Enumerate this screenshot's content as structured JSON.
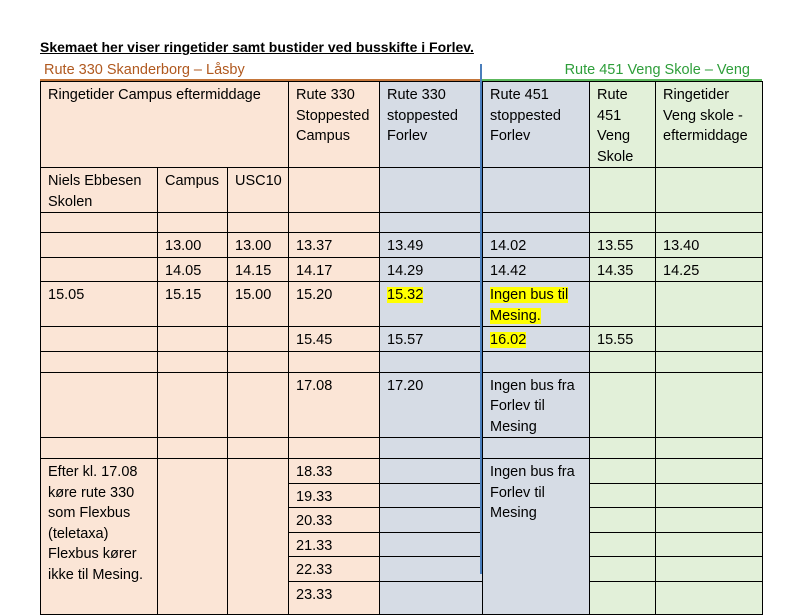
{
  "title": "Skemaet her viser ringetider samt bustider ved busskifte i Forlev.",
  "route_left": "Rute 330 Skanderborg – Låsby",
  "route_right": "Rute 451 Veng Skole – Veng",
  "header": {
    "ringetider_campus": "Ringetider Campus eftermiddage",
    "r330_campus": "Rute 330 Stoppested Campus",
    "r330_forlev": "Rute 330 stoppested Forlev",
    "r451_forlev": "Rute 451 stoppested Forlev",
    "r451_veng": "Rute 451 Veng Skole",
    "veng_ringetider": "Ringetider Veng skole - eftermiddage"
  },
  "subheader": {
    "niels": "Niels Ebbesen Skolen",
    "campus": "Campus",
    "usc10": "USC10"
  },
  "rows": {
    "r1": {
      "campus": "13.00",
      "usc10": "13.00",
      "r330_campus": "13.37",
      "r330_forlev": "13.49",
      "r451_forlev": "14.02",
      "r451_veng": "13.55",
      "veng": "13.40"
    },
    "r2": {
      "campus": "14.05",
      "usc10": "14.15",
      "r330_campus": "14.17",
      "r330_forlev": "14.29",
      "r451_forlev": "14.42",
      "r451_veng": "14.35",
      "veng": "14.25"
    },
    "r3": {
      "niels": "15.05",
      "campus": "15.15",
      "usc10": "15.00",
      "r330_campus": "15.20",
      "r330_forlev": "15.32",
      "r451_forlev": "Ingen bus til Mesing."
    },
    "r4": {
      "r330_campus": "15.45",
      "r330_forlev": "15.57",
      "r451_forlev": "16.02",
      "r451_veng": "15.55"
    },
    "r5": {
      "r330_campus": "17.08",
      "r330_forlev": "17.20",
      "r451_forlev": "Ingen bus fra Forlev til Mesing"
    }
  },
  "flexbus": {
    "note": "Efter kl. 17.08 køre rute 330 som Flexbus (teletaxa) Flexbus kører ikke til Mesing.",
    "times": [
      "18.33",
      "19.33",
      "20.33",
      "21.33",
      "22.33",
      "23.33"
    ],
    "r451_forlev": "Ingen bus fra Forlev til Mesing"
  }
}
